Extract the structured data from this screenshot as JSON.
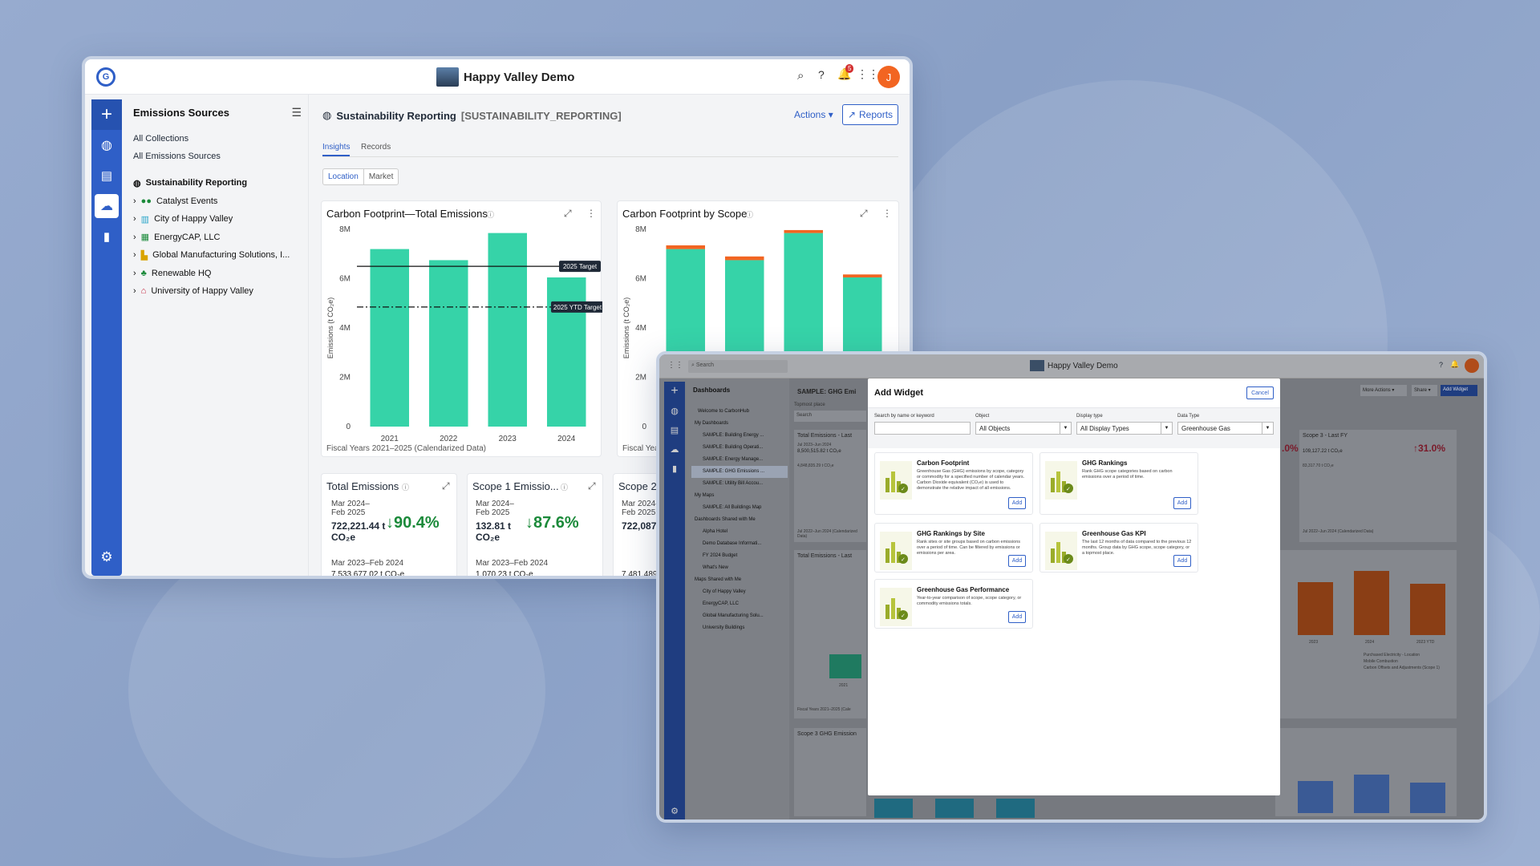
{
  "app": {
    "title": "Happy Valley Demo",
    "avatar": "J",
    "notif_count": "5",
    "logo": "G"
  },
  "sidebar": {
    "title": "Emissions Sources",
    "links": [
      "All Collections",
      "All Emissions Sources"
    ],
    "tree": [
      {
        "label": "Sustainability Reporting"
      },
      {
        "label": "Catalyst Events"
      },
      {
        "label": "City of Happy Valley"
      },
      {
        "label": "EnergyCAP, LLC"
      },
      {
        "label": "Global Manufacturing Solutions, I..."
      },
      {
        "label": "Renewable HQ"
      },
      {
        "label": "University of Happy Valley"
      }
    ]
  },
  "header": {
    "title": "Sustainability Reporting",
    "code": "[SUSTAINABILITY_REPORTING]",
    "actions": "Actions",
    "reports": "Reports"
  },
  "tabs": [
    "Insights",
    "Records"
  ],
  "toggle": [
    "Location",
    "Market"
  ],
  "chart1": {
    "title": "Carbon Footprint—Total Emissions",
    "footer": "Fiscal Years 2021–2025 (Calendarized Data)",
    "target": "2025 Target",
    "ytd": "2025 YTD Target"
  },
  "chart2": {
    "title": "Carbon Footprint by Scope",
    "footer": "Fiscal Years"
  },
  "chart_data": [
    {
      "type": "bar",
      "title": "Carbon Footprint—Total Emissions",
      "categories": [
        "2021",
        "2022",
        "2023",
        "2024"
      ],
      "values": [
        7200000,
        6750000,
        7850000,
        6050000
      ],
      "ylabel": "Emissions (t CO₂e)",
      "yticks": [
        "0",
        "2M",
        "4M",
        "6M",
        "8M"
      ],
      "ylim": [
        0,
        8000000
      ],
      "targets": [
        {
          "name": "2025 Target",
          "value": 6500000
        },
        {
          "name": "2025 YTD Target",
          "value": 4850000
        }
      ]
    },
    {
      "type": "bar",
      "title": "Carbon Footprint by Scope",
      "ylabel": "Emissions (t CO₂e)",
      "yticks": [
        "0",
        "2M",
        "4M",
        "6M",
        "8M"
      ],
      "ylim": [
        0,
        8000000
      ],
      "series": [
        {
          "name": "",
          "values": [
            7200000,
            6750000,
            7850000,
            6050000
          ]
        },
        {
          "name": "",
          "values": [
            150000,
            150000,
            120000,
            120000
          ]
        }
      ]
    }
  ],
  "kpis": [
    {
      "title": "Total Emissions",
      "period": "Mar 2024–Feb 2025",
      "value": "722,221.44 t CO₂e",
      "pct": "90.4%",
      "prev_period": "Mar 2023–Feb 2024",
      "prev_value": "7,533,677.02 t CO₂e"
    },
    {
      "title": "Scope 1 Emissio...",
      "period": "Mar 2024–Feb 2025",
      "value": "132.81 t CO₂e",
      "pct": "87.6%",
      "prev_period": "Mar 2023–Feb 2024",
      "prev_value": "1,070.23 t CO₂e"
    },
    {
      "title": "Scope 2",
      "period": "Mar 2024–Feb 2025",
      "value": "722,087",
      "prev_value": "7,481,489"
    }
  ],
  "w2": {
    "title": "Happy Valley Demo",
    "search": "Search",
    "sidebar_title": "Dashboards",
    "items": [
      "Welcome to CarbonHub",
      "My Dashboards",
      "SAMPLE: Building Energy ...",
      "SAMPLE: Building Operati...",
      "SAMPLE: Energy Manage...",
      "SAMPLE: GHG Emissions ...",
      "SAMPLE: Utility Bill Accou...",
      "My Maps",
      "SAMPLE: All Buildings Map",
      "Dashboards Shared with Me",
      "Alpha Hotel",
      "Demo Database Informati...",
      "FY 2024 Budget",
      "What's New",
      "Maps Shared with Me",
      "City of Happy Valley",
      "EnergyCAP, LLC",
      "Global Manufacturing Solu...",
      "University Buildings"
    ],
    "page_title": "SAMPLE: GHG Emi",
    "topmost": "Topmost place",
    "more_actions": "More Actions",
    "share": "Share",
    "add_widget": "Add Widget",
    "bg_cards": [
      "Total Emissions - Last",
      "8,500,515.82 t CO₂e",
      "Jul 2023–Jun 2024",
      "4,848,835.29 t CO₂e",
      "Total Emissions - Last",
      "Scope 3 GHG Emission",
      "Scope 3 - Last FY",
      "109,127.22 t CO₂e",
      "83,317.70 t CO₂e",
      "31.0%",
      ".0%",
      "Jul 2022–Jun 2024 (Calendarized Data)",
      "Fiscal Years 2021–2025 (Cale",
      "2023",
      "2024",
      "2023 YTD",
      "Purchased Electricity - Location",
      "Mobile Combustion",
      "Carbon Offsets and Adjustments (Scope 1)",
      "2021"
    ],
    "legend": [
      "Purchased Electricity - Location",
      "Mobile Combustion",
      "Carbon Offsets and Adjustments (Scope 1)"
    ]
  },
  "modal": {
    "title": "Add Widget",
    "cancel": "Cancel",
    "search_label": "Search by name or keyword",
    "object_label": "Object",
    "object_value": "All Objects",
    "display_label": "Display type",
    "display_value": "All Display Types",
    "data_label": "Data Type",
    "data_value": "Greenhouse Gas",
    "widgets": [
      {
        "title": "Carbon Footprint",
        "desc": "Greenhouse Gas (GHG) emissions by scope, category or commodity for a specified number of calendar years. Carbon Dioxide equivalent (CO₂e) is used to demonstrate the relative impact of all emissions.",
        "add": "Add"
      },
      {
        "title": "GHG Rankings",
        "desc": "Rank GHG scope categories based on carbon emissions over a period of time.",
        "add": "Add"
      },
      {
        "title": "GHG Rankings by Site",
        "desc": "Rank sites or site groups based on carbon emissions over a period of time. Can be filtered by emissions or emissions per area.",
        "add": "Add"
      },
      {
        "title": "Greenhouse Gas KPI",
        "desc": "The last 12 months of data compared to the previous 12 months. Group data by GHG scope, scope category, or a topmost place.",
        "add": "Add"
      },
      {
        "title": "Greenhouse Gas Performance",
        "desc": "Year-to-year comparison of scope, scope category, or commodity emissions totals.",
        "add": "Add"
      }
    ]
  },
  "colors": {
    "accent": "#2f5fc7",
    "bar": "#36d3a8",
    "orange": "#f26522",
    "green": "#1b8a3a",
    "red": "#b91c3c"
  }
}
